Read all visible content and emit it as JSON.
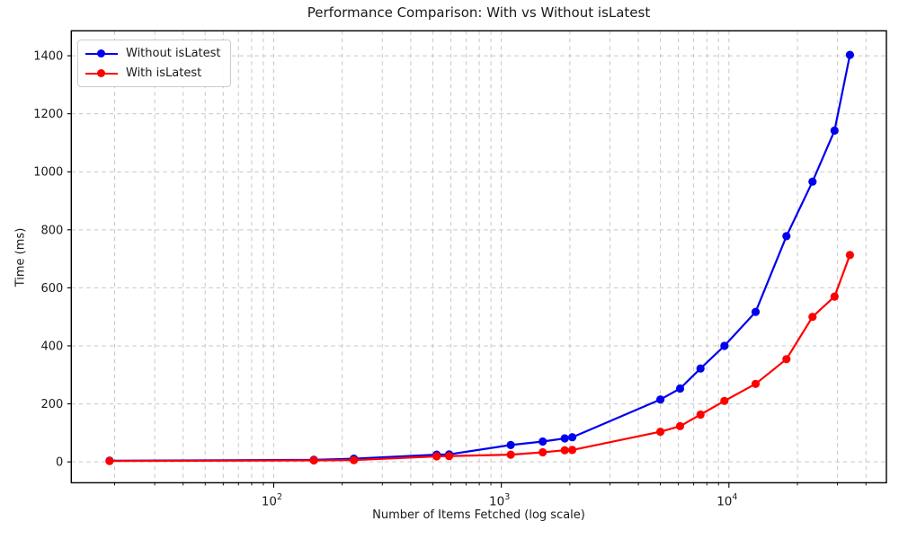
{
  "chart_data": {
    "type": "line",
    "title": "Performance Comparison: With vs Without isLatest",
    "xlabel": "Number of Items Fetched (log scale)",
    "ylabel": "Time (ms)",
    "x_scale": "log",
    "xlim": [
      12.9,
      49200
    ],
    "ylim": [
      -72,
      1486
    ],
    "x": [
      19,
      150,
      225,
      520,
      590,
      1100,
      1520,
      1900,
      2050,
      5000,
      6100,
      7500,
      9550,
      13100,
      17900,
      23300,
      29100,
      34000
    ],
    "series": [
      {
        "name": "Without isLatest",
        "color": "#0000ee",
        "values": [
          4,
          7,
          11,
          25,
          26,
          58,
          70,
          81,
          85,
          215,
          253,
          322,
          400,
          517,
          778,
          966,
          1142,
          1403
        ]
      },
      {
        "name": "With isLatest",
        "color": "#ff0000",
        "values": [
          3,
          5,
          6,
          19,
          20,
          25,
          33,
          40,
          41,
          104,
          123,
          163,
          210,
          269,
          354,
          500,
          570,
          713
        ]
      }
    ],
    "yticks": [
      0,
      200,
      400,
      600,
      800,
      1000,
      1200,
      1400
    ],
    "xticks": [
      {
        "base": "10",
        "exp": "2",
        "value": 100
      },
      {
        "base": "10",
        "exp": "3",
        "value": 1000
      },
      {
        "base": "10",
        "exp": "4",
        "value": 10000
      }
    ],
    "grid": {
      "which": "both",
      "linestyle": "dashed",
      "color": "#c6c6c6"
    },
    "legend_position": "upper left",
    "colors": {
      "spine": "#000000",
      "text": "#1a1a1a",
      "background": "#ffffff"
    }
  }
}
